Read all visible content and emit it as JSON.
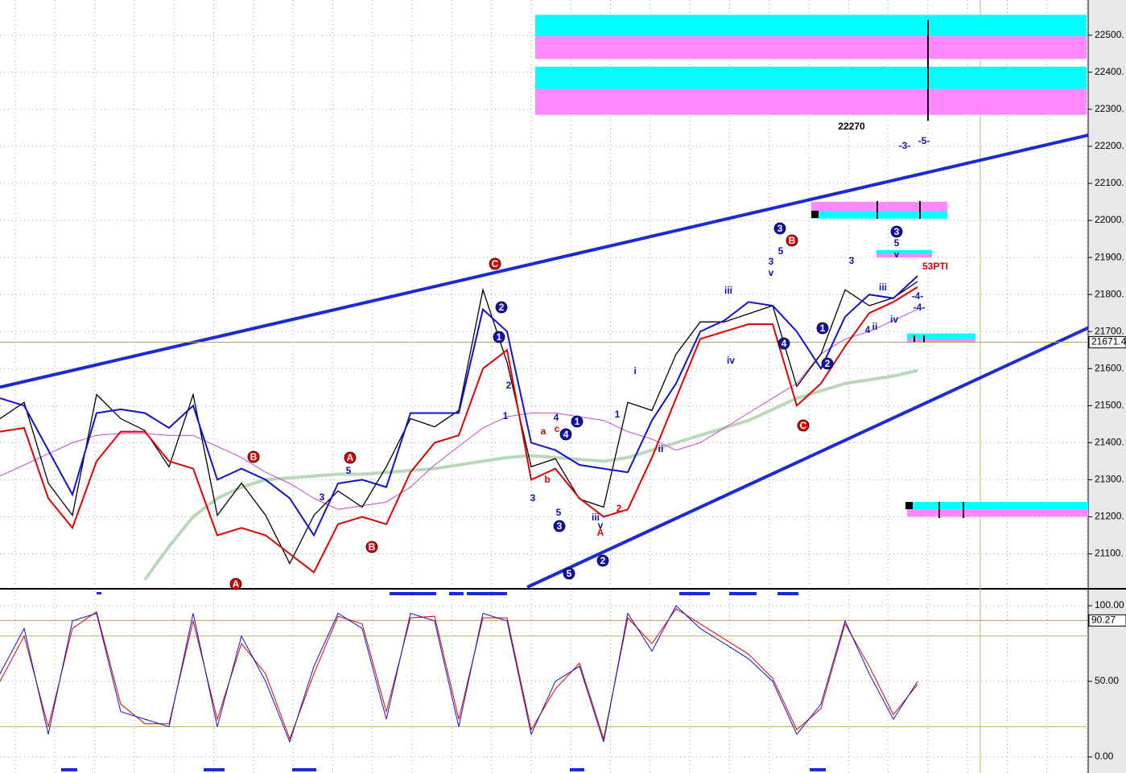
{
  "chart_data": [
    {
      "type": "line",
      "ylim": [
        21010,
        22595
      ],
      "yticks": [
        {
          "value": 22500,
          "label": "22500."
        },
        {
          "value": 22400,
          "label": "22400."
        },
        {
          "value": 22300,
          "label": "22300."
        },
        {
          "value": 22200,
          "label": "22200."
        },
        {
          "value": 22100,
          "label": "22100."
        },
        {
          "value": 22000,
          "label": "22000."
        },
        {
          "value": 21900,
          "label": "21900."
        },
        {
          "value": 21800,
          "label": "21800."
        },
        {
          "value": 21700,
          "label": "21700."
        },
        {
          "value": 21600,
          "label": "21600."
        },
        {
          "value": 21500,
          "label": "21500."
        },
        {
          "value": 21400,
          "label": "21400."
        },
        {
          "value": 21300,
          "label": "21300."
        },
        {
          "value": 21200,
          "label": "21200."
        },
        {
          "value": 21100,
          "label": "21100."
        }
      ],
      "grid": true,
      "price_marker": 21671.4,
      "series": [
        {
          "color": "#b8d8b8",
          "width": 4,
          "values": [
            null,
            null,
            null,
            null,
            null,
            null,
            21030,
            21120,
            21200,
            21250,
            21280,
            21300,
            21305,
            21310,
            21315,
            21315,
            21320,
            21325,
            21330,
            21340,
            21350,
            21360,
            21365,
            21360,
            21355,
            21350,
            21360,
            21380,
            21400,
            21420,
            21440,
            21460,
            21490,
            21520,
            21540,
            21560,
            21570,
            21580,
            21595
          ]
        },
        {
          "color": "#cc44cc",
          "width": 1,
          "values": [
            21310,
            21340,
            21370,
            21400,
            21420,
            21425,
            21425,
            21420,
            21420,
            21390,
            21360,
            21320,
            21290,
            21250,
            21220,
            21230,
            21240,
            21280,
            21340,
            21390,
            21440,
            21470,
            21480,
            21480,
            21470,
            21460,
            21430,
            21410,
            21380,
            21400,
            21440,
            21480,
            21520,
            21560,
            21640,
            21680,
            21700,
            21730,
            21760
          ]
        },
        {
          "color": "#000000",
          "width": 1.3,
          "values": [
            21465,
            21509,
            21291,
            21204,
            21530,
            21465,
            21433,
            21335,
            21530,
            21204,
            21291,
            21204,
            21074,
            21204,
            21270,
            21226,
            21335,
            21465,
            21443,
            21487,
            21813,
            21617,
            21335,
            21357,
            21248,
            21226,
            21509,
            21487,
            21639,
            21726,
            21726,
            21748,
            21770,
            21552,
            21639,
            21813,
            21770,
            21791,
            21835
          ]
        },
        {
          "color": "#e00000",
          "width": 2,
          "values": [
            21430,
            21440,
            21250,
            21170,
            21350,
            21430,
            21430,
            21350,
            21330,
            21150,
            21170,
            21150,
            21100,
            21050,
            21180,
            21200,
            21180,
            21320,
            21400,
            21420,
            21600,
            21650,
            21300,
            21330,
            21250,
            21200,
            21220,
            21360,
            21520,
            21680,
            21700,
            21720,
            21720,
            21500,
            21560,
            21660,
            21750,
            21780,
            21820
          ]
        },
        {
          "color": "#1010d0",
          "width": 2,
          "values": [
            21520,
            21500,
            21380,
            21260,
            21480,
            21490,
            21480,
            21440,
            21500,
            21300,
            21330,
            21300,
            21250,
            21150,
            21290,
            21300,
            21280,
            21480,
            21480,
            21480,
            21760,
            21700,
            21400,
            21380,
            21340,
            21330,
            21320,
            21460,
            21560,
            21700,
            21730,
            21780,
            21770,
            21700,
            21600,
            21740,
            21800,
            21790,
            21850
          ]
        }
      ],
      "trend_lines": [
        {
          "color": "#1a2ad8",
          "values": [
            21550,
            22230
          ]
        },
        {
          "color": "#1a2ad8",
          "values": [
            21010,
            21710
          ]
        }
      ],
      "zones": [
        {
          "color": "#00ffff",
          "range": [
            22497,
            22555
          ]
        },
        {
          "color": "#ff88ff",
          "range": [
            22436,
            22497
          ]
        },
        {
          "color": "#00ffff",
          "range": [
            22355,
            22415
          ]
        },
        {
          "color": "#ff88ff",
          "range": [
            22285,
            22355
          ]
        },
        {
          "color": "#ff88ff",
          "range": [
            22025,
            22050
          ]
        },
        {
          "color": "#00ffff",
          "range": [
            22005,
            22025
          ]
        },
        {
          "color": "#00ffff",
          "range": [
            21910,
            21920
          ]
        },
        {
          "color": "#ff88ff",
          "range": [
            21900,
            21910
          ]
        },
        {
          "color": "#00ffff",
          "range": [
            21680,
            21695
          ]
        },
        {
          "color": "#ff88ff",
          "range": [
            21670,
            21680
          ]
        },
        {
          "color": "#00ffff",
          "range": [
            21220,
            21240
          ]
        },
        {
          "color": "#ff88ff",
          "range": [
            21200,
            21220
          ]
        }
      ],
      "annotations": [
        {
          "text": "C",
          "color": "#e00000",
          "circled": true
        },
        {
          "text": "B",
          "color": "#e00000",
          "circled": true
        },
        {
          "text": "A",
          "color": "#e00000",
          "circled": true
        },
        {
          "text": "B",
          "color": "#e00000",
          "circled": true
        },
        {
          "text": "A",
          "color": "#e00000",
          "circled": true
        },
        {
          "text": "B",
          "color": "#e00000",
          "circled": true
        },
        {
          "text": "C",
          "color": "#e00000",
          "circled": true
        },
        {
          "text": "1",
          "color": "#1010b0",
          "circled": true
        },
        {
          "text": "4",
          "color": "#1010b0",
          "circled": true
        },
        {
          "text": "3",
          "color": "#1010b0",
          "circled": true
        },
        {
          "text": "5",
          "color": "#1010b0",
          "circled": true
        },
        {
          "text": "2",
          "color": "#1010b0",
          "circled": true
        },
        {
          "text": "3",
          "color": "#1010b0",
          "circled": true
        },
        {
          "text": "2",
          "color": "#1010b0",
          "circled": true
        },
        {
          "text": "1",
          "color": "#1010b0",
          "circled": true
        },
        {
          "text": "1",
          "color": "#1010b0",
          "circled": true
        },
        {
          "text": "2",
          "color": "#1010b0",
          "circled": true
        },
        {
          "text": "4",
          "color": "#1010b0",
          "circled": true
        },
        {
          "text": "3",
          "color": "#1010b0",
          "circled": true
        },
        {
          "text": "5",
          "color": "#1010b0"
        },
        {
          "text": "3",
          "color": "#1010b0"
        },
        {
          "text": "iii",
          "color": "#1010b0"
        },
        {
          "text": "iv",
          "color": "#1010b0"
        },
        {
          "text": "i",
          "color": "#1010b0"
        },
        {
          "text": "ii",
          "color": "#1010b0"
        },
        {
          "text": "1",
          "color": "#1010b0"
        },
        {
          "text": "3",
          "color": "#1010b0"
        },
        {
          "text": "v",
          "color": "#1010b0"
        },
        {
          "text": "5",
          "color": "#1010b0"
        },
        {
          "text": "3",
          "color": "#1010b0"
        },
        {
          "text": "iii",
          "color": "#1010b0"
        },
        {
          "text": "4",
          "color": "#1010b0"
        },
        {
          "text": "ii",
          "color": "#1010b0"
        },
        {
          "text": "iv",
          "color": "#1010b0"
        },
        {
          "text": "5",
          "color": "#1010b0"
        },
        {
          "text": "v",
          "color": "#1010b0"
        },
        {
          "text": "3",
          "color": "#1010b0"
        },
        {
          "text": "4",
          "color": "#1010b0"
        },
        {
          "text": "5",
          "color": "#1010b0"
        },
        {
          "text": "2",
          "color": "#1010b0"
        },
        {
          "text": "1",
          "color": "#1010b0"
        },
        {
          "text": "iii",
          "color": "#1010b0"
        },
        {
          "text": "v",
          "color": "#1010b0"
        },
        {
          "text": "a",
          "color": "#e00000"
        },
        {
          "text": "b",
          "color": "#e00000"
        },
        {
          "text": "c",
          "color": "#e00000"
        },
        {
          "text": "2",
          "color": "#e00000"
        },
        {
          "text": "A",
          "color": "#e00000"
        },
        {
          "text": "22270",
          "color": "#000000"
        },
        {
          "text": "-3-",
          "color": "#1010d0"
        },
        {
          "text": "-5-",
          "color": "#1010d0"
        },
        {
          "text": "53PTI",
          "color": "#e00000"
        },
        {
          "text": "-4-",
          "color": "#1010d0"
        },
        {
          "text": "-4-",
          "color": "#1010d0"
        }
      ]
    },
    {
      "type": "line",
      "ylim": [
        -10.6,
        109.6
      ],
      "yticks": [
        {
          "value": 100,
          "label": "100.00"
        },
        {
          "value": 50,
          "label": "50.00"
        },
        {
          "value": 0,
          "label": "0.00"
        }
      ],
      "grid": true,
      "levels": [
        80,
        20
      ],
      "price_marker": 90.27,
      "series": [
        {
          "color": "#e00000",
          "width": 1,
          "values": [
            50,
            80,
            20,
            85,
            96,
            35,
            22,
            22,
            90,
            25,
            75,
            55,
            12,
            55,
            93,
            88,
            30,
            92,
            93,
            25,
            92,
            92,
            18,
            45,
            62,
            12,
            92,
            75,
            98,
            88,
            78,
            68,
            52,
            18,
            32,
            88,
            60,
            28,
            48
          ]
        },
        {
          "color": "#1010d0",
          "width": 1,
          "values": [
            55,
            85,
            15,
            90,
            95,
            30,
            25,
            20,
            95,
            20,
            80,
            50,
            10,
            60,
            95,
            85,
            25,
            95,
            90,
            20,
            95,
            90,
            15,
            50,
            60,
            10,
            95,
            70,
            100,
            85,
            75,
            65,
            50,
            15,
            35,
            90,
            55,
            25,
            50
          ]
        }
      ]
    }
  ]
}
